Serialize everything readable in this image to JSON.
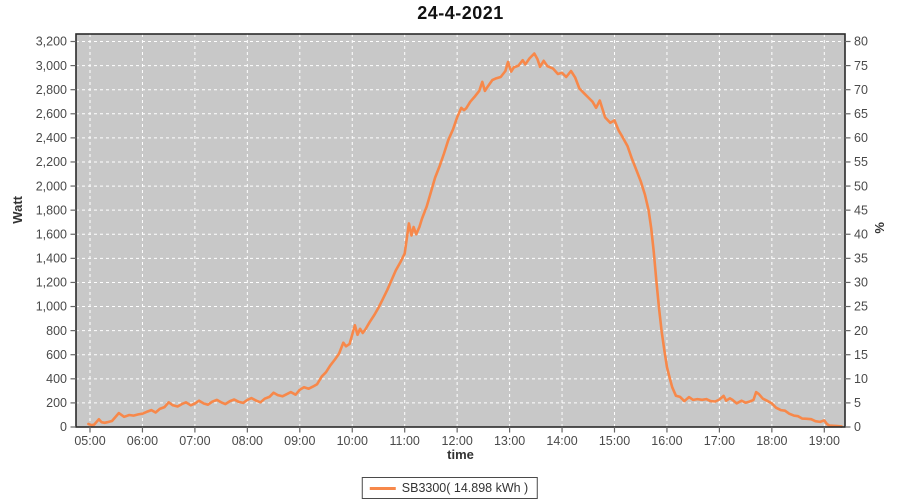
{
  "chart_data": {
    "type": "line",
    "title": "24-4-2021",
    "xlabel": "time",
    "ylabel_left": "Watt",
    "ylabel_right": "%",
    "x_ticks": [
      "05:00",
      "06:00",
      "07:00",
      "08:00",
      "09:00",
      "10:00",
      "11:00",
      "12:00",
      "13:00",
      "14:00",
      "15:00",
      "16:00",
      "17:00",
      "18:00",
      "19:00"
    ],
    "y_ticks_left": [
      "0",
      "200",
      "400",
      "600",
      "800",
      "1,000",
      "1,200",
      "1,400",
      "1,600",
      "1,800",
      "2,000",
      "2,200",
      "2,400",
      "2,600",
      "2,800",
      "3,000",
      "3,200"
    ],
    "y_ticks_right": [
      "0",
      "5",
      "10",
      "15",
      "20",
      "25",
      "30",
      "35",
      "40",
      "45",
      "50",
      "55",
      "60",
      "65",
      "70",
      "75",
      "80"
    ],
    "ylim_left": [
      0,
      3200
    ],
    "ytick_step_left": 200,
    "ylim_right": [
      0,
      80
    ],
    "ytick_step_right": 5,
    "x_range_hours": [
      4.75,
      19.4
    ],
    "grid": true,
    "legend_position": "bottom-center",
    "colors": {
      "line": "#f7884a",
      "plot_background": "#c8c8c8",
      "grid": "#ffffff",
      "border": "#2b2b2b",
      "tick_text": "#4a4a4a",
      "tick_mark": "#666666"
    },
    "legend": [
      {
        "label": "SB3300( 14.898 kWh )",
        "color": "#f7884a"
      }
    ],
    "series": [
      {
        "name": "SB3300",
        "daily_energy_kwh": 14.898,
        "points": [
          [
            4.97,
            25
          ],
          [
            5.03,
            15
          ],
          [
            5.08,
            20
          ],
          [
            5.17,
            65
          ],
          [
            5.22,
            40
          ],
          [
            5.28,
            35
          ],
          [
            5.33,
            40
          ],
          [
            5.42,
            50
          ],
          [
            5.55,
            115
          ],
          [
            5.65,
            85
          ],
          [
            5.75,
            100
          ],
          [
            5.83,
            95
          ],
          [
            5.92,
            105
          ],
          [
            6.0,
            110
          ],
          [
            6.08,
            125
          ],
          [
            6.17,
            140
          ],
          [
            6.25,
            120
          ],
          [
            6.33,
            150
          ],
          [
            6.42,
            165
          ],
          [
            6.5,
            205
          ],
          [
            6.58,
            180
          ],
          [
            6.67,
            170
          ],
          [
            6.75,
            190
          ],
          [
            6.83,
            205
          ],
          [
            6.92,
            180
          ],
          [
            7.0,
            195
          ],
          [
            7.08,
            218
          ],
          [
            7.17,
            195
          ],
          [
            7.25,
            185
          ],
          [
            7.33,
            210
          ],
          [
            7.42,
            225
          ],
          [
            7.5,
            205
          ],
          [
            7.58,
            190
          ],
          [
            7.67,
            215
          ],
          [
            7.75,
            228
          ],
          [
            7.83,
            210
          ],
          [
            7.92,
            200
          ],
          [
            8.0,
            225
          ],
          [
            8.08,
            240
          ],
          [
            8.17,
            218
          ],
          [
            8.25,
            205
          ],
          [
            8.33,
            235
          ],
          [
            8.42,
            250
          ],
          [
            8.5,
            285
          ],
          [
            8.58,
            265
          ],
          [
            8.67,
            255
          ],
          [
            8.75,
            272
          ],
          [
            8.83,
            290
          ],
          [
            8.92,
            268
          ],
          [
            9.0,
            310
          ],
          [
            9.08,
            330
          ],
          [
            9.17,
            318
          ],
          [
            9.25,
            335
          ],
          [
            9.33,
            355
          ],
          [
            9.42,
            420
          ],
          [
            9.5,
            455
          ],
          [
            9.58,
            510
          ],
          [
            9.67,
            560
          ],
          [
            9.75,
            610
          ],
          [
            9.83,
            700
          ],
          [
            9.88,
            670
          ],
          [
            9.95,
            690
          ],
          [
            10.05,
            845
          ],
          [
            10.1,
            765
          ],
          [
            10.15,
            815
          ],
          [
            10.2,
            780
          ],
          [
            10.25,
            810
          ],
          [
            10.33,
            870
          ],
          [
            10.42,
            930
          ],
          [
            10.5,
            990
          ],
          [
            10.58,
            1060
          ],
          [
            10.67,
            1140
          ],
          [
            10.75,
            1220
          ],
          [
            10.83,
            1300
          ],
          [
            10.92,
            1370
          ],
          [
            11.0,
            1440
          ],
          [
            11.08,
            1690
          ],
          [
            11.13,
            1590
          ],
          [
            11.17,
            1660
          ],
          [
            11.22,
            1600
          ],
          [
            11.28,
            1660
          ],
          [
            11.33,
            1730
          ],
          [
            11.42,
            1830
          ],
          [
            11.5,
            1950
          ],
          [
            11.58,
            2070
          ],
          [
            11.67,
            2170
          ],
          [
            11.75,
            2270
          ],
          [
            11.83,
            2380
          ],
          [
            11.92,
            2470
          ],
          [
            12.0,
            2570
          ],
          [
            12.08,
            2650
          ],
          [
            12.13,
            2630
          ],
          [
            12.17,
            2645
          ],
          [
            12.25,
            2700
          ],
          [
            12.33,
            2740
          ],
          [
            12.42,
            2790
          ],
          [
            12.48,
            2865
          ],
          [
            12.53,
            2790
          ],
          [
            12.58,
            2825
          ],
          [
            12.67,
            2880
          ],
          [
            12.75,
            2895
          ],
          [
            12.83,
            2905
          ],
          [
            12.92,
            2955
          ],
          [
            12.97,
            3030
          ],
          [
            13.03,
            2950
          ],
          [
            13.08,
            2985
          ],
          [
            13.17,
            3000
          ],
          [
            13.25,
            3045
          ],
          [
            13.3,
            3010
          ],
          [
            13.38,
            3060
          ],
          [
            13.47,
            3100
          ],
          [
            13.53,
            3055
          ],
          [
            13.58,
            2990
          ],
          [
            13.65,
            3040
          ],
          [
            13.72,
            2995
          ],
          [
            13.83,
            2975
          ],
          [
            13.92,
            2930
          ],
          [
            14.0,
            2940
          ],
          [
            14.08,
            2905
          ],
          [
            14.17,
            2955
          ],
          [
            14.25,
            2900
          ],
          [
            14.33,
            2810
          ],
          [
            14.42,
            2770
          ],
          [
            14.5,
            2735
          ],
          [
            14.58,
            2700
          ],
          [
            14.65,
            2650
          ],
          [
            14.72,
            2710
          ],
          [
            14.82,
            2570
          ],
          [
            14.92,
            2525
          ],
          [
            15.0,
            2545
          ],
          [
            15.08,
            2460
          ],
          [
            15.13,
            2425
          ],
          [
            15.25,
            2330
          ],
          [
            15.33,
            2230
          ],
          [
            15.42,
            2130
          ],
          [
            15.5,
            2040
          ],
          [
            15.58,
            1930
          ],
          [
            15.65,
            1800
          ],
          [
            15.7,
            1650
          ],
          [
            15.75,
            1450
          ],
          [
            15.8,
            1200
          ],
          [
            15.85,
            980
          ],
          [
            15.9,
            790
          ],
          [
            15.95,
            640
          ],
          [
            16.0,
            500
          ],
          [
            16.05,
            410
          ],
          [
            16.1,
            330
          ],
          [
            16.17,
            260
          ],
          [
            16.25,
            250
          ],
          [
            16.33,
            215
          ],
          [
            16.42,
            248
          ],
          [
            16.5,
            225
          ],
          [
            16.58,
            232
          ],
          [
            16.67,
            226
          ],
          [
            16.75,
            232
          ],
          [
            16.83,
            215
          ],
          [
            16.92,
            212
          ],
          [
            17.0,
            228
          ],
          [
            17.08,
            258
          ],
          [
            17.13,
            218
          ],
          [
            17.2,
            238
          ],
          [
            17.25,
            225
          ],
          [
            17.33,
            196
          ],
          [
            17.42,
            218
          ],
          [
            17.5,
            202
          ],
          [
            17.58,
            212
          ],
          [
            17.65,
            225
          ],
          [
            17.7,
            290
          ],
          [
            17.75,
            275
          ],
          [
            17.83,
            235
          ],
          [
            17.92,
            215
          ],
          [
            18.0,
            196
          ],
          [
            18.08,
            160
          ],
          [
            18.17,
            140
          ],
          [
            18.25,
            135
          ],
          [
            18.33,
            110
          ],
          [
            18.42,
            95
          ],
          [
            18.5,
            90
          ],
          [
            18.58,
            70
          ],
          [
            18.67,
            68
          ],
          [
            18.75,
            65
          ],
          [
            18.83,
            48
          ],
          [
            18.92,
            42
          ],
          [
            19.0,
            55
          ],
          [
            19.05,
            25
          ],
          [
            19.1,
            12
          ],
          [
            19.17,
            10
          ],
          [
            19.25,
            8
          ],
          [
            19.33,
            5
          ]
        ]
      }
    ]
  }
}
